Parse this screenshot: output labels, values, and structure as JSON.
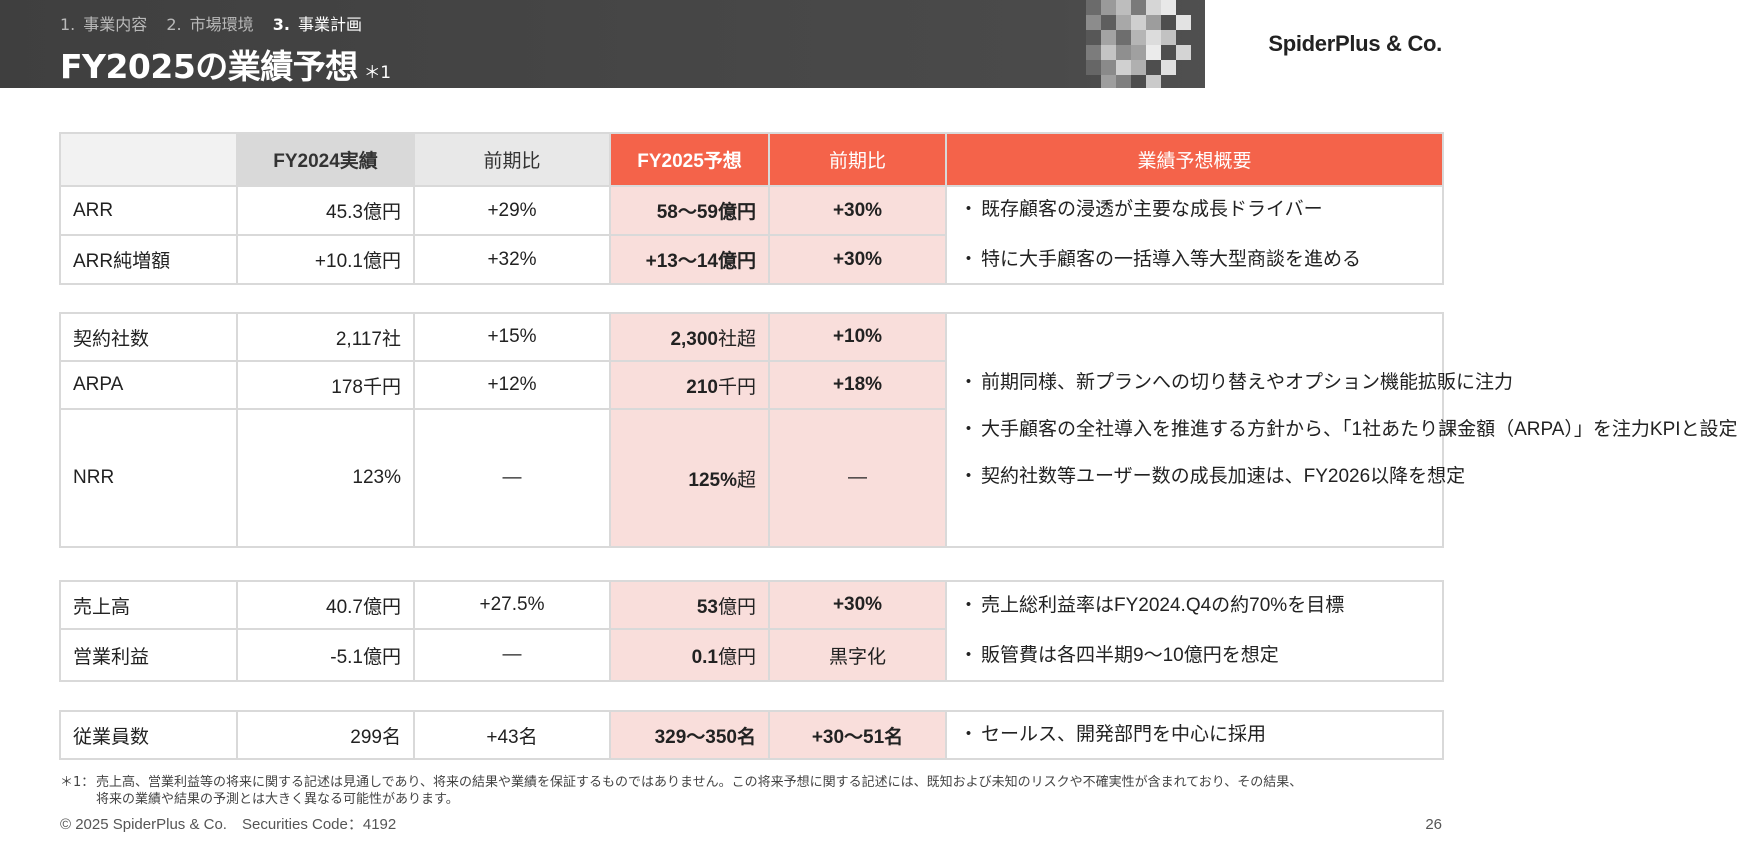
{
  "header": {
    "breadcrumb": [
      {
        "num": "1.",
        "label": "事業内容"
      },
      {
        "num": "2.",
        "label": "市場環境"
      },
      {
        "num": "3.",
        "label": "事業計画"
      }
    ],
    "title": "FY2025の業績予想",
    "title_note": "＊1",
    "logo": "SpiderPlus & Co."
  },
  "table": {
    "columns": [
      "",
      "FY2024実績",
      "前期比",
      "FY2025予想",
      "前期比",
      "業績予想概要"
    ],
    "group1": {
      "rows": [
        {
          "label": "ARR",
          "fy2024": "45.3億円",
          "yoy2024": "+29%",
          "fy2025": "58～59億円",
          "yoy2025": "+30%"
        },
        {
          "label": "ARR純増額",
          "fy2024": "+10.1億円",
          "yoy2024": "+32%",
          "fy2025": "+13～14億円",
          "yoy2025": "+30%"
        }
      ],
      "summary": [
        "既存顧客の浸透が主要な成長ドライバー",
        "特に大手顧客の一括導入等大型商談を進める"
      ]
    },
    "group2": {
      "rows": [
        {
          "label": "契約社数",
          "fy2024": "2,117社",
          "yoy2024": "+15%",
          "fy2025_num": "2,300",
          "fy2025_unit": "社超",
          "yoy2025": "+10%"
        },
        {
          "label": "ARPA",
          "fy2024": "178千円",
          "yoy2024": "+12%",
          "fy2025_num": "210",
          "fy2025_unit": "千円",
          "yoy2025": "+18%"
        },
        {
          "label": "NRR",
          "fy2024": "123%",
          "yoy2024": "―",
          "fy2025_num": "125%",
          "fy2025_unit": "超",
          "yoy2025": "―"
        }
      ],
      "summary": [
        "前期同様、新プランへの切り替えやオプション機能拡販に注力",
        "大手顧客の全社導入を推進する方針から、「1社あたり課金額（ARPA）」を注力KPIと設定",
        "契約社数等ユーザー数の成長加速は、FY2026以降を想定"
      ]
    },
    "group3": {
      "rows": [
        {
          "label": "売上高",
          "fy2024": "40.7億円",
          "yoy2024": "+27.5%",
          "fy2025_num": "53",
          "fy2025_unit": "億円",
          "yoy2025": "+30%",
          "yoy2025_bold": true
        },
        {
          "label": "営業利益",
          "fy2024": "-5.1億円",
          "yoy2024": "―",
          "fy2025_num": "0.1",
          "fy2025_unit": "億円",
          "yoy2025": "黒字化",
          "yoy2025_bold": false
        }
      ],
      "summary": [
        "売上総利益率はFY2024.Q4の約70%を目標",
        "販管費は各四半期9～10億円を想定"
      ]
    },
    "group4": {
      "rows": [
        {
          "label": "従業員数",
          "fy2024": "299名",
          "yoy2024": "+43名",
          "fy2025": "329～350名",
          "yoy2025": "+30～51名"
        }
      ],
      "summary": [
        "セールス、開発部門を中心に採用"
      ]
    }
  },
  "footnote": {
    "mark": "＊1：",
    "line1": "売上高、営業利益等の将来に関する記述は見通しであり、将来の結果や業績を保証するものではありません。この将来予想に関する記述には、既知および未知のリスクや不確実性が含まれており、その結果、",
    "line2": "将来の業績や結果の予測とは大きく異なる可能性があります。"
  },
  "footer": {
    "copyright": "© 2025 SpiderPlus & Co.　Securities Code：4192",
    "page_number": "26"
  },
  "colors": {
    "header_bg": "#3f3f3f",
    "accent_red": "#f4634a",
    "forecast_pink": "#f9dedb",
    "border_gray": "#d9d9d9"
  }
}
